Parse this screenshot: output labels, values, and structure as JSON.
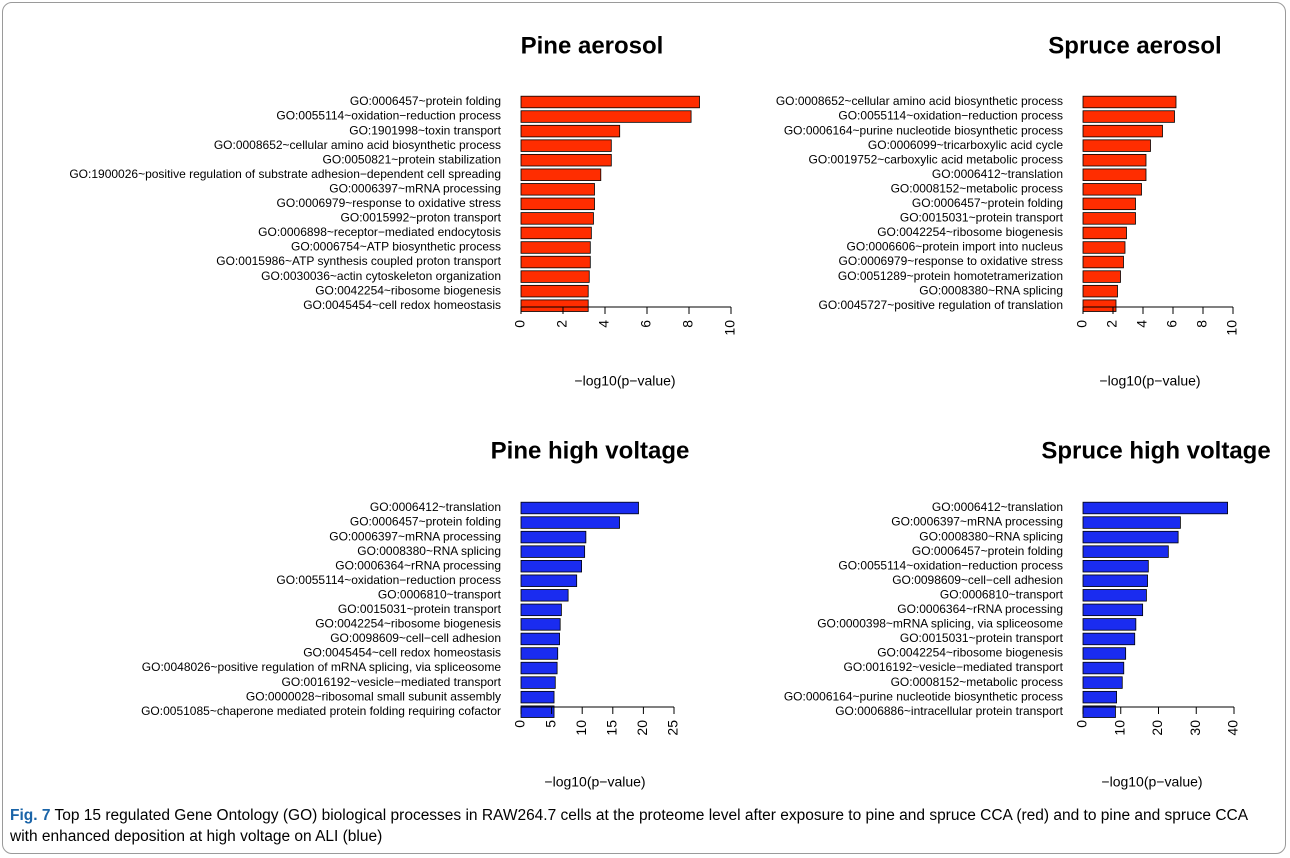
{
  "chart_data": [
    {
      "type": "bar",
      "orientation": "horizontal",
      "title": "Pine aerosol",
      "xlabel": "−log10(p−value)",
      "xlim": [
        0,
        10
      ],
      "xticks": [
        "0",
        "2",
        "4",
        "6",
        "8",
        "10"
      ],
      "color": "#ff2d00",
      "categories": [
        "GO:0006457~protein folding",
        "GO:0055114~oxidation−reduction process",
        "GO:1901998~toxin transport",
        "GO:0008652~cellular amino acid biosynthetic process",
        "GO:0050821~protein stabilization",
        "GO:1900026~positive regulation of substrate adhesion−dependent cell spreading",
        "GO:0006397~mRNA processing",
        "GO:0006979~response to oxidative stress",
        "GO:0015992~proton transport",
        "GO:0006898~receptor−mediated endocytosis",
        "GO:0006754~ATP biosynthetic process",
        "GO:0015986~ATP synthesis coupled proton transport",
        "GO:0030036~actin cytoskeleton organization",
        "GO:0042254~ribosome biogenesis",
        "GO:0045454~cell redox homeostasis"
      ],
      "values": [
        8.5,
        8.1,
        4.7,
        4.3,
        4.3,
        3.8,
        3.5,
        3.5,
        3.45,
        3.35,
        3.3,
        3.3,
        3.25,
        3.2,
        3.2
      ]
    },
    {
      "type": "bar",
      "orientation": "horizontal",
      "title": "Spruce aerosol",
      "xlabel": "−log10(p−value)",
      "xlim": [
        0,
        10
      ],
      "xticks": [
        "0",
        "2",
        "4",
        "6",
        "8",
        "10"
      ],
      "color": "#ff2d00",
      "categories": [
        "GO:0008652~cellular amino acid biosynthetic process",
        "GO:0055114~oxidation−reduction process",
        "GO:0006164~purine nucleotide biosynthetic process",
        "GO:0006099~tricarboxylic acid cycle",
        "GO:0019752~carboxylic acid metabolic process",
        "GO:0006412~translation",
        "GO:0008152~metabolic process",
        "GO:0006457~protein folding",
        "GO:0015031~protein transport",
        "GO:0042254~ribosome biogenesis",
        "GO:0006606~protein import into nucleus",
        "GO:0006979~response to oxidative stress",
        "GO:0051289~protein homotetramerization",
        "GO:0008380~RNA splicing",
        "GO:0045727~positive regulation of translation"
      ],
      "values": [
        6.2,
        6.1,
        5.3,
        4.5,
        4.2,
        4.2,
        3.9,
        3.5,
        3.5,
        2.9,
        2.8,
        2.7,
        2.5,
        2.3,
        2.2
      ]
    },
    {
      "type": "bar",
      "orientation": "horizontal",
      "title": "Pine high voltage",
      "xlabel": "−log10(p−value)",
      "xlim": [
        0,
        25
      ],
      "xticks": [
        "0",
        "5",
        "10",
        "15",
        "20",
        "25"
      ],
      "color": "#1a2cf0",
      "categories": [
        "GO:0006412~translation",
        "GO:0006457~protein folding",
        "GO:0006397~mRNA processing",
        "GO:0008380~RNA splicing",
        "GO:0006364~rRNA processing",
        "GO:0055114~oxidation−reduction process",
        "GO:0006810~transport",
        "GO:0015031~protein transport",
        "GO:0042254~ribosome biogenesis",
        "GO:0098609~cell−cell adhesion",
        "GO:0045454~cell redox homeostasis",
        "GO:0048026~positive regulation of mRNA splicing, via spliceosome",
        "GO:0016192~vesicle−mediated transport",
        "GO:0000028~ribosomal small subunit assembly",
        "GO:0051085~chaperone mediated protein folding requiring cofactor"
      ],
      "values": [
        19.2,
        16.1,
        10.6,
        10.4,
        9.9,
        9.1,
        7.7,
        6.6,
        6.4,
        6.3,
        6.0,
        5.9,
        5.6,
        5.4,
        5.4
      ]
    },
    {
      "type": "bar",
      "orientation": "horizontal",
      "title": "Spruce high voltage",
      "xlabel": "−log10(p−value)",
      "xlim": [
        0,
        40
      ],
      "xticks": [
        "0",
        "10",
        "20",
        "30",
        "40"
      ],
      "color": "#1a2cf0",
      "categories": [
        "GO:0006412~translation",
        "GO:0006397~mRNA processing",
        "GO:0008380~RNA splicing",
        "GO:0006457~protein folding",
        "GO:0055114~oxidation−reduction process",
        "GO:0098609~cell−cell adhesion",
        "GO:0006810~transport",
        "GO:0006364~rRNA processing",
        "GO:0000398~mRNA splicing, via spliceosome",
        "GO:0015031~protein transport",
        "GO:0042254~ribosome biogenesis",
        "GO:0016192~vesicle−mediated transport",
        "GO:0008152~metabolic process",
        "GO:0006164~purine nucleotide biosynthetic process",
        "GO:0006886~intracellular protein transport"
      ],
      "values": [
        38.3,
        25.8,
        25.2,
        22.6,
        17.3,
        17.1,
        16.8,
        15.8,
        14.0,
        13.7,
        11.3,
        10.8,
        10.4,
        8.9,
        8.6
      ]
    }
  ],
  "caption": {
    "label": "Fig. 7",
    "text": " Top 15 regulated Gene Ontology (GO) biological processes in RAW264.7 cells at the proteome level after exposure to pine and spruce CCA (red) and to pine and spruce CCA with enhanced deposition at high voltage on ALI (blue)"
  }
}
